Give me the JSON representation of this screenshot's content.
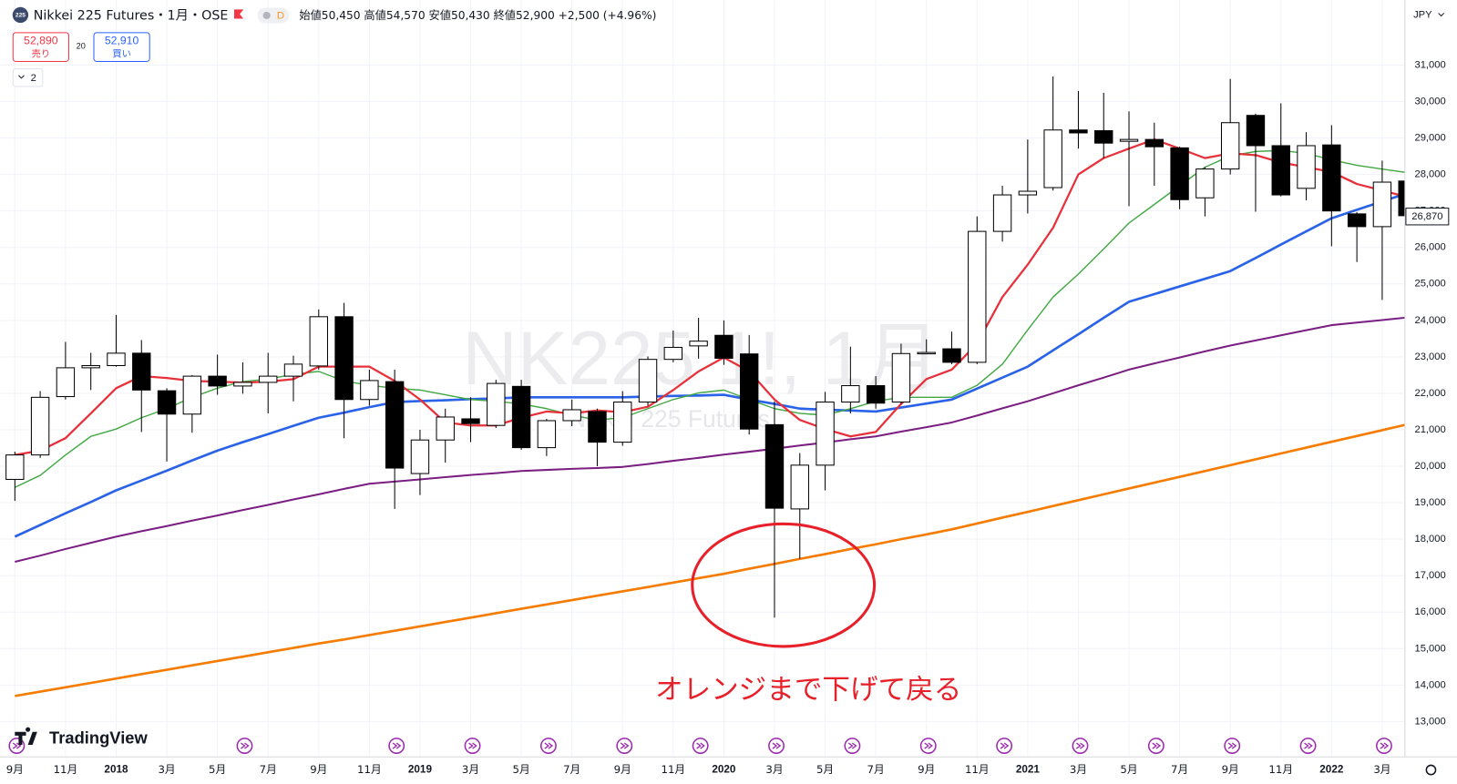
{
  "chart_data": {
    "type": "candlestick",
    "symbol_logo": "225",
    "symbol": "Nikkei 225 Futures・1月・OSE",
    "badge": "D",
    "ohlc_summary": "始値50,450 高値54,570 安値50,430 終値52,900 +2,500 (+4.96%)",
    "sell": {
      "price": "52,890",
      "label": "売り"
    },
    "spread": "20",
    "buy": {
      "price": "52,910",
      "label": "買い"
    },
    "indicator_count": "2",
    "currency": "JPY",
    "watermark": "NK225 1!, 1月",
    "watermark_sub": "Nikkei 225 Futures",
    "annotation": "オレンジまで下げて戻る",
    "brand": "TradingView",
    "last_price_label": "26,870",
    "up_color": "#ffffff",
    "down_color": "#000000",
    "grid": true,
    "ylim": [
      12030,
      32780
    ],
    "yticks": [
      {
        "value": 13000,
        "label": "13,000"
      },
      {
        "value": 14000,
        "label": "14,000"
      },
      {
        "value": 15000,
        "label": "15,000"
      },
      {
        "value": 16000,
        "label": "16,000"
      },
      {
        "value": 17000,
        "label": "17,000"
      },
      {
        "value": 18000,
        "label": "18,000"
      },
      {
        "value": 19000,
        "label": "19,000"
      },
      {
        "value": 20000,
        "label": "20,000"
      },
      {
        "value": 21000,
        "label": "21,000"
      },
      {
        "value": 22000,
        "label": "22,000"
      },
      {
        "value": 23000,
        "label": "23,000"
      },
      {
        "value": 24000,
        "label": "24,000"
      },
      {
        "value": 25000,
        "label": "25,000"
      },
      {
        "value": 26000,
        "label": "26,000"
      },
      {
        "value": 27000,
        "label": "27,000"
      },
      {
        "value": 28000,
        "label": "28,000"
      },
      {
        "value": 29000,
        "label": "29,000"
      },
      {
        "value": 30000,
        "label": "30,000"
      },
      {
        "value": 31000,
        "label": "31,000"
      }
    ],
    "categories": [
      "9月",
      null,
      "11月",
      null,
      "2018",
      null,
      "3月",
      null,
      "5月",
      null,
      "7月",
      null,
      "9月",
      null,
      "11月",
      null,
      "2019",
      null,
      "3月",
      null,
      "5月",
      null,
      "7月",
      null,
      "9月",
      null,
      "11月",
      null,
      "2020",
      null,
      "3月",
      null,
      "5月",
      null,
      "7月",
      null,
      "9月",
      null,
      "11月",
      null,
      "2021",
      null,
      "3月",
      null,
      "5月",
      null,
      "7月",
      null,
      "9月",
      null,
      "11月",
      null,
      "2022",
      null,
      "3月",
      null
    ],
    "ohlc": [
      [
        19640,
        20400,
        19050,
        20310
      ],
      [
        20310,
        22060,
        20230,
        21890
      ],
      [
        21910,
        23410,
        21830,
        22700
      ],
      [
        22700,
        23110,
        22090,
        22760
      ],
      [
        22760,
        24150,
        22730,
        23100
      ],
      [
        23100,
        23460,
        20940,
        22090
      ],
      [
        22070,
        22140,
        20130,
        21430
      ],
      [
        21430,
        22500,
        20920,
        22470
      ],
      [
        22470,
        23060,
        21960,
        22200
      ],
      [
        22200,
        22850,
        21990,
        22300
      ],
      [
        22300,
        23110,
        21450,
        22470
      ],
      [
        22470,
        23030,
        21780,
        22800
      ],
      [
        22750,
        24300,
        22650,
        24100
      ],
      [
        24100,
        24480,
        20770,
        21830
      ],
      [
        21830,
        22650,
        21660,
        22350
      ],
      [
        22320,
        22650,
        18830,
        19950
      ],
      [
        19800,
        21000,
        19210,
        20720
      ],
      [
        20720,
        21580,
        20100,
        21350
      ],
      [
        21300,
        21890,
        20660,
        21170
      ],
      [
        21120,
        22370,
        21050,
        22270
      ],
      [
        22190,
        22370,
        20450,
        20510
      ],
      [
        20510,
        21300,
        20280,
        21250
      ],
      [
        21250,
        21830,
        21100,
        21550
      ],
      [
        21500,
        21580,
        20000,
        20660
      ],
      [
        20660,
        22060,
        20560,
        21760
      ],
      [
        21760,
        23010,
        21660,
        22930
      ],
      [
        22930,
        23720,
        22850,
        23260
      ],
      [
        23300,
        24070,
        22950,
        23430
      ],
      [
        23590,
        24000,
        22780,
        22960
      ],
      [
        23080,
        23600,
        20870,
        21020
      ],
      [
        21140,
        21780,
        15850,
        18850
      ],
      [
        18830,
        20360,
        17460,
        20030
      ],
      [
        20030,
        22040,
        19340,
        21760
      ],
      [
        21760,
        23280,
        21450,
        22210
      ],
      [
        22210,
        22470,
        21580,
        21730
      ],
      [
        21760,
        23360,
        21710,
        23090
      ],
      [
        23110,
        23480,
        23090,
        23120
      ],
      [
        23220,
        23690,
        22800,
        22850
      ],
      [
        22850,
        26850,
        22800,
        26440
      ],
      [
        26440,
        27690,
        26160,
        27440
      ],
      [
        27440,
        28960,
        26930,
        27540
      ],
      [
        27640,
        30690,
        27560,
        29220
      ],
      [
        29220,
        30290,
        28710,
        29140
      ],
      [
        29200,
        30240,
        28450,
        28860
      ],
      [
        28910,
        29730,
        27130,
        28960
      ],
      [
        28960,
        29420,
        27690,
        28760
      ],
      [
        28730,
        28760,
        27050,
        27310
      ],
      [
        27360,
        28200,
        26850,
        28150
      ],
      [
        28150,
        30620,
        28000,
        29420
      ],
      [
        29620,
        29670,
        26980,
        28790
      ],
      [
        28790,
        29950,
        27400,
        27440
      ],
      [
        27620,
        29160,
        27290,
        28790
      ],
      [
        28810,
        29350,
        26030,
        27000
      ],
      [
        26920,
        26970,
        25600,
        26570
      ],
      [
        26570,
        28380,
        24560,
        27790
      ],
      [
        27820,
        27850,
        26820,
        26870
      ]
    ],
    "series": [
      {
        "color": "#f57c00",
        "width": 2.6,
        "values": [
          13700,
          13820,
          13940,
          14060,
          14180,
          14300,
          14420,
          14540,
          14660,
          14780,
          14900,
          15020,
          15140,
          15250,
          15370,
          15490,
          15610,
          15730,
          15850,
          15970,
          16090,
          16210,
          16330,
          16450,
          16570,
          16690,
          16810,
          16930,
          17050,
          17190,
          17320,
          17460,
          17590,
          17730,
          17860,
          18000,
          18130,
          18270,
          18430,
          18590,
          18750,
          18910,
          19070,
          19230,
          19390,
          19550,
          19710,
          19870,
          20030,
          20190,
          20350,
          20510,
          20670,
          20830,
          20990,
          21150
        ]
      },
      {
        "color": "#7b1e82",
        "width": 2,
        "values": [
          17380,
          17550,
          17730,
          17900,
          18070,
          18220,
          18360,
          18510,
          18650,
          18800,
          18940,
          19090,
          19230,
          19380,
          19520,
          19580,
          19640,
          19700,
          19760,
          19810,
          19870,
          19900,
          19930,
          19950,
          19980,
          20060,
          20150,
          20230,
          20320,
          20400,
          20480,
          20570,
          20650,
          20740,
          20820,
          20950,
          21070,
          21200,
          21390,
          21590,
          21780,
          22000,
          22220,
          22430,
          22650,
          22820,
          22980,
          23150,
          23310,
          23450,
          23590,
          23730,
          23870,
          23940,
          24010,
          24080
        ]
      },
      {
        "color": "#2a62e8",
        "width": 2.6,
        "values": [
          18070,
          18390,
          18710,
          19020,
          19340,
          19610,
          19880,
          20160,
          20430,
          20660,
          20880,
          21110,
          21330,
          21470,
          21620,
          21760,
          21790,
          21810,
          21840,
          21860,
          21890,
          21890,
          21890,
          21890,
          21890,
          21910,
          21930,
          21940,
          21960,
          21830,
          21710,
          21580,
          21550,
          21530,
          21500,
          21610,
          21720,
          21830,
          22130,
          22430,
          22730,
          23180,
          23620,
          24070,
          24510,
          24720,
          24930,
          25140,
          25350,
          25710,
          26080,
          26440,
          26800,
          27030,
          27260,
          27490
        ]
      },
      {
        "color": "#43a843",
        "width": 1.4,
        "values": [
          19420,
          19750,
          20310,
          20820,
          21020,
          21330,
          21580,
          21890,
          22140,
          22320,
          22390,
          22520,
          22600,
          22340,
          22220,
          22140,
          22090,
          21960,
          21830,
          21780,
          21710,
          21580,
          21400,
          21270,
          21330,
          21580,
          21830,
          22010,
          22090,
          21830,
          21580,
          21450,
          21400,
          21580,
          21780,
          21890,
          21890,
          21890,
          22220,
          22800,
          23740,
          24640,
          25270,
          25960,
          26670,
          27180,
          27690,
          28200,
          28510,
          28630,
          28660,
          28580,
          28400,
          28250,
          28150,
          28050
        ]
      },
      {
        "color": "#e8303a",
        "width": 2.2,
        "values": [
          20310,
          20430,
          20770,
          21450,
          22140,
          22470,
          22420,
          22340,
          22320,
          22290,
          22320,
          22390,
          22730,
          22730,
          22730,
          22340,
          21830,
          21200,
          21120,
          21120,
          21330,
          21500,
          21450,
          21530,
          21480,
          21630,
          22090,
          22600,
          22980,
          22600,
          21830,
          21270,
          21020,
          20820,
          20940,
          21710,
          22390,
          22650,
          23360,
          24640,
          25530,
          26540,
          28000,
          28450,
          28710,
          28960,
          28710,
          28450,
          28580,
          28530,
          28330,
          28200,
          28070,
          27740,
          27560,
          27380
        ]
      }
    ]
  }
}
